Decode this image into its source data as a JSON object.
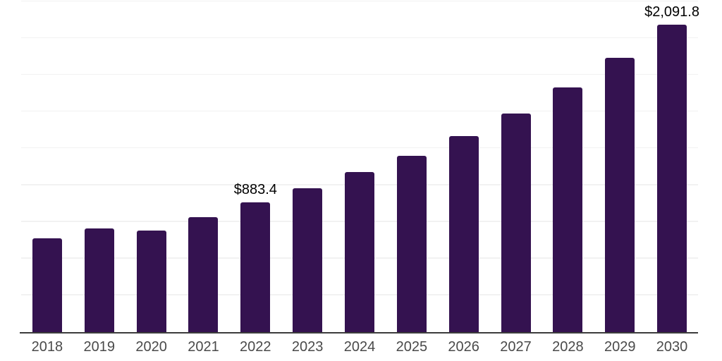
{
  "chart_data": {
    "type": "bar",
    "title": "",
    "xlabel": "",
    "ylabel": "",
    "categories": [
      "2018",
      "2019",
      "2020",
      "2021",
      "2022",
      "2023",
      "2024",
      "2025",
      "2026",
      "2027",
      "2028",
      "2029",
      "2030"
    ],
    "values": [
      638,
      705,
      691,
      782,
      883.4,
      979,
      1088,
      1199,
      1334,
      1487,
      1665,
      1866,
      2091.8
    ],
    "point_labels": [
      null,
      null,
      null,
      null,
      "$883.4",
      null,
      null,
      null,
      null,
      null,
      null,
      null,
      "$2,091.8"
    ],
    "ylim": [
      0,
      2250
    ],
    "gridline_step": 250,
    "grid": true,
    "legend": false,
    "y_tick_labels_visible": false,
    "colors": {
      "bar": "#341250",
      "axis_line": "#3c3c3c",
      "gridline": "#f2f2f2",
      "tick_label": "#4a4a4a",
      "data_label": "#000000",
      "background": "#ffffff"
    }
  }
}
